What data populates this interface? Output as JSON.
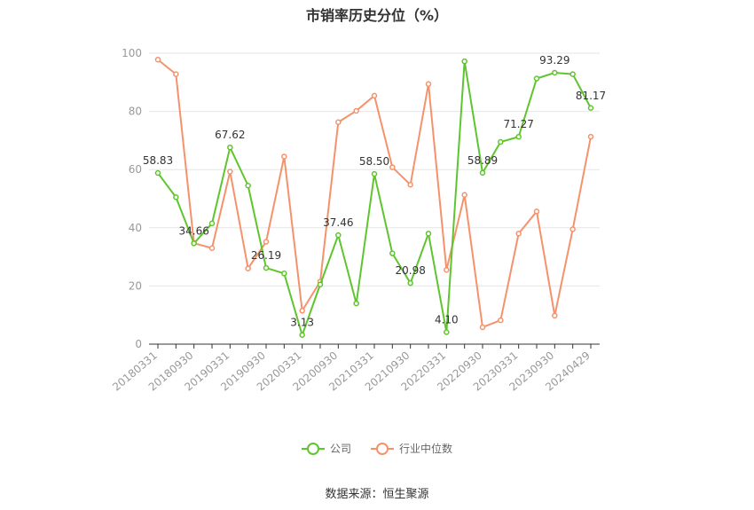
{
  "title": "市销率历史分位（%）",
  "source": "数据来源：恒生聚源",
  "legend": {
    "company": "公司",
    "industry": "行业中位数"
  },
  "colors": {
    "company": "#5fc52e",
    "industry": "#f5926b",
    "axis": "#999999",
    "grid": "#e6e6e6",
    "text": "#333333"
  },
  "chart_data": {
    "type": "line",
    "title": "市销率历史分位（%）",
    "ylim": [
      0,
      100
    ],
    "yticks": [
      0,
      20,
      40,
      60,
      80,
      100
    ],
    "grid": true,
    "legend_position": "bottom",
    "x_tick_labels": [
      "20180331",
      "20180930",
      "20190331",
      "20190930",
      "20200331",
      "20200930",
      "20210331",
      "20210930",
      "20220331",
      "20220930",
      "20230331",
      "20230930",
      "20240429"
    ],
    "point_count": 25,
    "series": [
      {
        "name": "公司",
        "key": "company",
        "values": [
          58.83,
          50.5,
          34.66,
          41.5,
          67.62,
          54.5,
          26.19,
          24.3,
          3.13,
          20.5,
          37.46,
          14.0,
          58.5,
          31.2,
          20.98,
          38.0,
          4.1,
          97.2,
          58.89,
          69.5,
          71.27,
          91.3,
          93.29,
          92.8,
          81.17
        ],
        "labels": {
          "0": "58.83",
          "2": "34.66",
          "4": "67.62",
          "6": "26.19",
          "8": "3.13",
          "10": "37.46",
          "12": "58.50",
          "14": "20.98",
          "16": "4.10",
          "18": "58.89",
          "20": "71.27",
          "22": "93.29",
          "24": "81.17"
        }
      },
      {
        "name": "行业中位数",
        "key": "industry",
        "values": [
          97.8,
          92.8,
          34.7,
          33.0,
          59.3,
          26.0,
          35.2,
          64.5,
          11.5,
          21.5,
          76.3,
          80.2,
          85.4,
          60.8,
          54.8,
          89.4,
          25.5,
          51.3,
          5.8,
          8.2,
          38.0,
          45.6,
          9.8,
          39.5,
          71.3
        ]
      }
    ]
  }
}
